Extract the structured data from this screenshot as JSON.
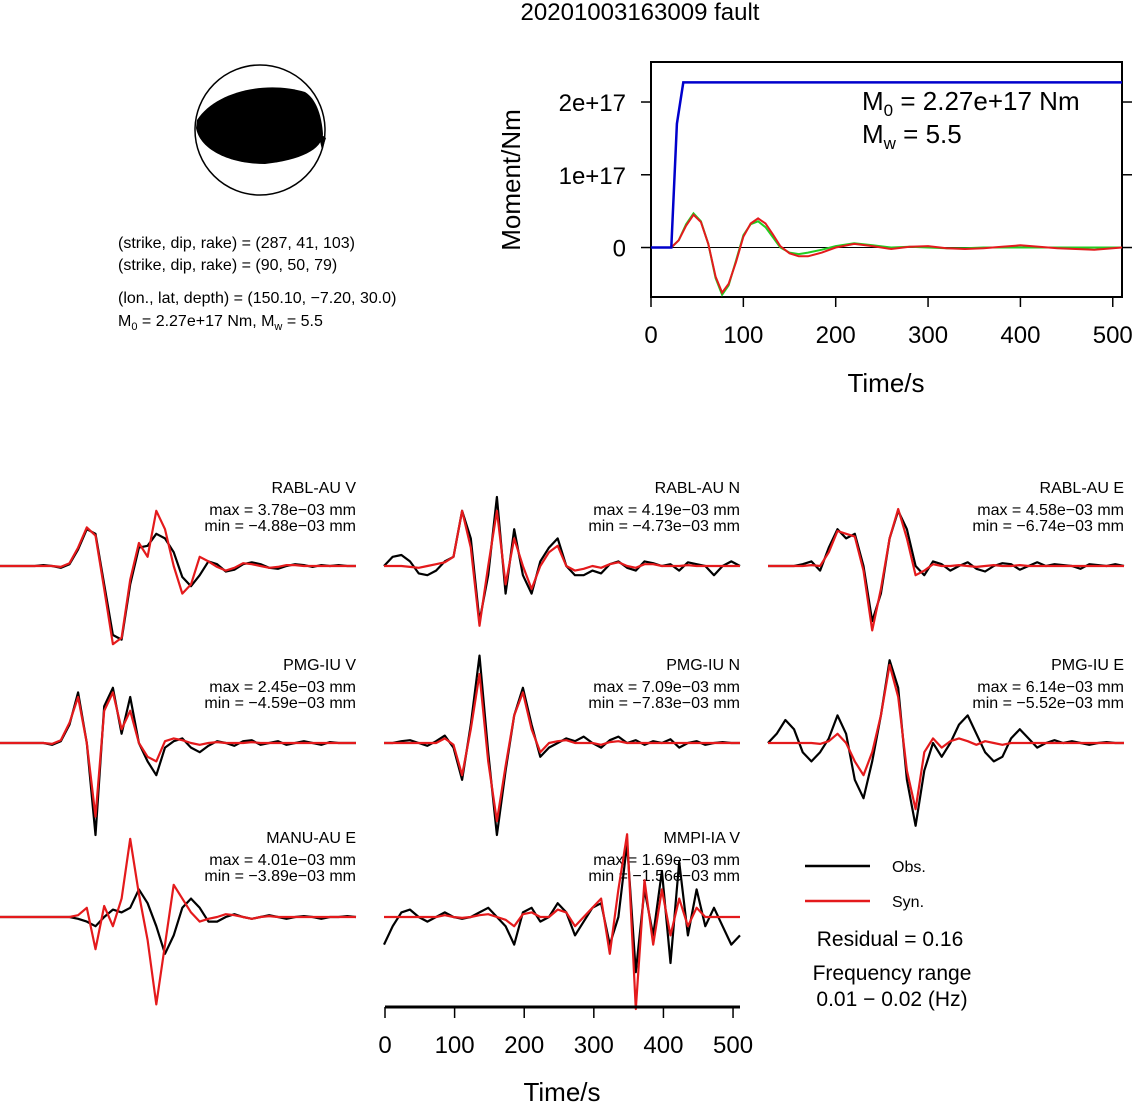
{
  "title": "20201003163009 fault",
  "colors": {
    "obs": "#000000",
    "syn": "#e41a1c",
    "moment": "#0000cc",
    "stf_a": "#e41a1c",
    "stf_b": "#22cc22"
  },
  "mechanism": {
    "lines": [
      "(strike, dip, rake) = (287, 41, 103)",
      "(strike, dip, rake) = (90, 50, 79)",
      "(lon., lat, depth) = (150.10, −7.20, 30.0)"
    ],
    "m0_line": {
      "m_prefix": "M",
      "m_sub": "0",
      "m_rest": " = 2.27e+17 Nm, M",
      "w_sub": "w",
      "w_rest": " = 5.5"
    }
  },
  "chart_data": [
    {
      "type": "line",
      "ylabel": "Moment/Nm",
      "xlabel": "Time/s",
      "xlim": [
        0,
        510
      ],
      "ylim": [
        -6.8e+16,
        2.55e+17
      ],
      "xticks": [
        0,
        100,
        200,
        300,
        400,
        500
      ],
      "xtick_labels": [
        "0",
        "100",
        "200",
        "300",
        "400",
        "500"
      ],
      "yticks": [
        0,
        1e+17,
        2e+17
      ],
      "ytick_labels": [
        "0",
        "1e+17",
        "2e+17"
      ],
      "annotation": {
        "m": "M",
        "m_sub": "0",
        "m_text": " = 2.27e+17 Nm",
        "w": "M",
        "w_sub": "w",
        "w_text": " = 5.5"
      },
      "series": [
        {
          "role": "moment",
          "x": [
            0,
            22,
            28,
            35,
            40,
            510
          ],
          "y": [
            0,
            0,
            1.7e+17,
            2.27e+17,
            2.27e+17,
            2.27e+17
          ]
        },
        {
          "role": "stf_a",
          "x": [
            0,
            22,
            30,
            38,
            46,
            54,
            62,
            70,
            77,
            84,
            92,
            100,
            108,
            116,
            124,
            132,
            140,
            150,
            160,
            170,
            185,
            200,
            220,
            240,
            260,
            280,
            300,
            320,
            340,
            360,
            380,
            400,
            420,
            440,
            460,
            480,
            500,
            510
          ],
          "y": [
            0,
            0,
            1e+16,
            3e+16,
            4.5e+16,
            3.5e+16,
            5000000000000000.0,
            -4e+16,
            -6.2e+16,
            -5e+16,
            -2e+16,
            1.5e+16,
            3.3e+16,
            4e+16,
            3.3e+16,
            1.8e+16,
            2000000000000000.0,
            -8000000000000000.0,
            -1.2e+16,
            -1.2e+16,
            -7000000000000000.0,
            0.0,
            5000000000000000.0,
            2000000000000000.0,
            -2000000000000000.0,
            1000000000000000.0,
            2000000000000000.0,
            -1000000000000000.0,
            -2000000000000000.0,
            -1000000000000000.0,
            1000000000000000.0,
            3000000000000000.0,
            1000000000000000.0,
            -1000000000000000.0,
            -2000000000000000.0,
            -3000000000000000.0,
            -1000000000000000.0,
            0
          ]
        },
        {
          "role": "stf_b",
          "x": [
            0,
            22,
            30,
            38,
            46,
            54,
            62,
            70,
            77,
            84,
            92,
            100,
            108,
            116,
            124,
            132,
            140,
            150,
            160,
            170,
            185,
            200,
            220,
            240,
            260,
            280,
            300,
            320,
            340,
            360,
            380,
            400,
            420,
            440,
            460,
            480,
            500,
            510
          ],
          "y": [
            0,
            0,
            1e+16,
            3.2e+16,
            4.7e+16,
            3.6e+16,
            5000000000000000.0,
            -4.2e+16,
            -6.5e+16,
            -5.2e+16,
            -1.8e+16,
            1.7e+16,
            3.2e+16,
            3.6e+16,
            2.8e+16,
            1.4e+16,
            0.0,
            -7000000000000000.0,
            -9000000000000000.0,
            -7000000000000000.0,
            -3000000000000000.0,
            2000000000000000.0,
            6000000000000000.0,
            3000000000000000.0,
            0.0,
            1000000000000000.0,
            0.0,
            -1000000000000000.0,
            -1000000000000000.0,
            0.0,
            0.0,
            0.0,
            0.0,
            0.0,
            0.0,
            0.0,
            0.0,
            0
          ]
        }
      ]
    },
    {
      "type": "line",
      "xlabel": "Time/s",
      "xlim": [
        0,
        510
      ],
      "xticks": [
        0,
        100,
        200,
        300,
        400,
        500
      ],
      "xtick_labels": [
        "0",
        "100",
        "200",
        "300",
        "400",
        "500"
      ],
      "series_names": [
        "Obs.",
        "Syn."
      ],
      "residual": "Residual = 0.16",
      "freq_label": "Frequency range",
      "freq_value": "0.01 − 0.02 (Hz)",
      "panels": [
        {
          "station": "RABL-AU V",
          "max": "max = 3.78e−03 mm",
          "min": "min = −4.88e−03 mm",
          "obs": [
            0,
            0,
            0,
            0,
            0,
            0.01,
            0,
            -0.02,
            0.02,
            0.18,
            0.4,
            0.35,
            -0.2,
            -0.75,
            -0.8,
            -0.2,
            0.2,
            0.22,
            0.35,
            0.3,
            0.15,
            -0.12,
            -0.22,
            -0.1,
            0.05,
            0.02,
            -0.06,
            -0.04,
            0.02,
            0.04,
            0.02,
            -0.02,
            -0.03,
            0,
            0.02,
            0.01,
            -0.01,
            0.01,
            0,
            0.01,
            0,
            0
          ],
          "syn": [
            0,
            0,
            0,
            0,
            0,
            0,
            0,
            -0.01,
            0.03,
            0.2,
            0.42,
            0.33,
            -0.25,
            -0.85,
            -0.78,
            -0.15,
            0.25,
            0.1,
            0.6,
            0.4,
            0.0,
            -0.3,
            -0.2,
            0.1,
            0.05,
            -0.01,
            -0.05,
            -0.02,
            0.03,
            0.02,
            0,
            -0.02,
            -0.01,
            0.01,
            0.01,
            0,
            0,
            0,
            0,
            0,
            0,
            0
          ]
        },
        {
          "station": "RABL-AU N",
          "max": "max = 4.19e−03 mm",
          "min": "min = −4.73e−03 mm",
          "obs": [
            0,
            0.1,
            0.12,
            0.05,
            -0.08,
            -0.1,
            -0.05,
            0.05,
            0.1,
            0.6,
            0.3,
            -0.6,
            -0.1,
            0.75,
            -0.3,
            0.4,
            -0.1,
            -0.3,
            0.05,
            0.2,
            0.3,
            0.0,
            -0.1,
            -0.1,
            -0.05,
            -0.08,
            0.02,
            0.05,
            -0.02,
            -0.05,
            0.05,
            0.03,
            0.0,
            0.02,
            -0.05,
            0.04,
            0.02,
            0.0,
            -0.1,
            0.0,
            0.05,
            0
          ],
          "syn": [
            0,
            0,
            0,
            -0.01,
            -0.02,
            0,
            0.02,
            0.04,
            0.1,
            0.6,
            0.2,
            -0.65,
            0.0,
            0.6,
            -0.2,
            0.3,
            0.0,
            -0.25,
            0.0,
            0.15,
            0.22,
            0.0,
            -0.05,
            -0.03,
            0,
            -0.02,
            0.02,
            0.04,
            0,
            -0.02,
            0.02,
            0.02,
            0,
            0,
            0,
            0.01,
            0,
            0,
            0,
            0,
            0,
            0
          ]
        },
        {
          "station": "RABL-AU E",
          "max": "max = 4.58e−03 mm",
          "min": "min = −6.74e−03 mm",
          "obs": [
            0,
            0,
            0,
            0,
            0.02,
            0.05,
            -0.05,
            0.2,
            0.4,
            0.3,
            0.35,
            0.0,
            -0.6,
            -0.3,
            0.3,
            0.6,
            0.4,
            0.0,
            -0.1,
            0.05,
            0.02,
            -0.05,
            0.0,
            0.04,
            -0.03,
            -0.06,
            0.0,
            0.03,
            0.02,
            -0.04,
            0.0,
            0.04,
            0.0,
            0.02,
            0.01,
            0.0,
            -0.03,
            0.02,
            0.01,
            0.0,
            0.02,
            0
          ],
          "syn": [
            0,
            0,
            0,
            0,
            0,
            0.01,
            0.0,
            0.15,
            0.38,
            0.35,
            0.32,
            -0.05,
            -0.7,
            -0.25,
            0.3,
            0.62,
            0.3,
            -0.1,
            -0.05,
            0.02,
            0.0,
            0.0,
            0.01,
            0.0,
            -0.01,
            0.0,
            0.01,
            0.0,
            0.0,
            0.01,
            0.0,
            0.0,
            0.0,
            0.0,
            0.0,
            0.0,
            0.0,
            0.0,
            0.0,
            0.0,
            0.0,
            0
          ]
        },
        {
          "station": "PMG-IU V",
          "max": "max = 2.45e−03 mm",
          "min": "min = −4.59e−03 mm",
          "obs": [
            0,
            0,
            0,
            0,
            0,
            0,
            -0.02,
            0.02,
            0.2,
            0.55,
            0.0,
            -1.0,
            0.4,
            0.6,
            0.1,
            0.5,
            0.0,
            -0.2,
            -0.35,
            -0.05,
            0.02,
            0.05,
            -0.05,
            -0.1,
            -0.03,
            0.02,
            0.0,
            -0.03,
            0.02,
            0.03,
            -0.02,
            0.0,
            0.02,
            -0.02,
            0.0,
            0.02,
            0.0,
            -0.02,
            0.01,
            0.0,
            0.0,
            0
          ],
          "syn": [
            0,
            0,
            0,
            0,
            0,
            0,
            -0.01,
            0.03,
            0.22,
            0.5,
            0.0,
            -0.8,
            0.35,
            0.55,
            0.15,
            0.35,
            0.0,
            -0.15,
            -0.2,
            0.02,
            0.05,
            0.03,
            0.0,
            -0.02,
            0.0,
            0.01,
            0.0,
            0.0,
            0.0,
            0.01,
            0.0,
            0.0,
            0.0,
            0.0,
            0.0,
            0.0,
            0.0,
            0.0,
            0.0,
            0.0,
            0.0,
            0
          ]
        },
        {
          "station": "PMG-IU N",
          "max": "max = 7.09e−03 mm",
          "min": "min = −7.83e−03 mm",
          "obs": [
            0,
            0,
            0.02,
            0.03,
            0,
            -0.03,
            0.02,
            0.08,
            -0.05,
            -0.4,
            0.2,
            0.95,
            -0.1,
            -1.0,
            -0.3,
            0.3,
            0.6,
            0.2,
            -0.15,
            -0.05,
            0.0,
            0.05,
            0.02,
            0.07,
            0.0,
            -0.05,
            0.03,
            0.07,
            0.0,
            0.03,
            -0.02,
            0.02,
            0.0,
            0.04,
            -0.05,
            0.0,
            0.02,
            -0.02,
            0.0,
            0.01,
            0.0,
            0
          ],
          "syn": [
            0,
            0,
            0,
            0,
            0,
            0,
            0.0,
            0.05,
            -0.02,
            -0.35,
            0.15,
            0.75,
            -0.2,
            -0.85,
            -0.25,
            0.3,
            0.55,
            0.15,
            -0.1,
            0.0,
            0.02,
            0.03,
            0.0,
            0.0,
            0.0,
            -0.02,
            0.01,
            0.02,
            0.0,
            0.0,
            0.0,
            0.0,
            0.0,
            0.0,
            0.0,
            0.0,
            0.0,
            0.0,
            0.0,
            0.0,
            0.0,
            0
          ]
        },
        {
          "station": "PMG-IU E",
          "max": "max = 6.14e−03 mm",
          "min": "min = −5.52e−03 mm",
          "obs": [
            0,
            0.1,
            0.25,
            0.15,
            -0.1,
            -0.2,
            -0.1,
            0.05,
            0.3,
            0.1,
            -0.4,
            -0.6,
            -0.2,
            0.3,
            0.9,
            0.6,
            -0.4,
            -0.9,
            -0.3,
            0.0,
            -0.15,
            0.0,
            0.2,
            0.3,
            0.1,
            -0.1,
            -0.2,
            -0.15,
            0.05,
            0.15,
            0.05,
            -0.05,
            0.0,
            0.03,
            0.0,
            0.02,
            0.0,
            -0.02,
            0.0,
            0.01,
            0.0,
            0
          ],
          "syn": [
            0,
            0,
            0,
            0,
            0,
            0,
            -0.01,
            0.02,
            0.1,
            0.0,
            -0.2,
            -0.35,
            -0.1,
            0.3,
            0.85,
            0.5,
            -0.3,
            -0.72,
            -0.1,
            0.05,
            -0.05,
            0.02,
            0.05,
            0.02,
            -0.02,
            0.02,
            0.0,
            -0.02,
            0.0,
            0.0,
            0.0,
            0.0,
            0.0,
            0.0,
            0.0,
            0.0,
            0.0,
            0.0,
            0.0,
            0.0,
            0.0,
            0
          ]
        },
        {
          "station": "MANU-AU E",
          "max": "max = 4.01e−03 mm",
          "min": "min = −3.89e−03 mm",
          "obs": [
            0,
            0,
            0,
            0,
            0,
            0,
            0,
            0,
            0,
            -0.02,
            -0.05,
            -0.1,
            0.0,
            0.08,
            0.05,
            0.1,
            0.3,
            0.15,
            -0.1,
            -0.4,
            -0.2,
            0.1,
            0.2,
            0.1,
            -0.05,
            -0.05,
            0.0,
            0.03,
            0.0,
            -0.02,
            0.0,
            0.02,
            0.0,
            -0.02,
            0.0,
            0.01,
            0.0,
            -0.02,
            0.0,
            0.0,
            0.01,
            0
          ],
          "syn": [
            0,
            0,
            0,
            0,
            0,
            0,
            0,
            0,
            0,
            0.02,
            0.1,
            -0.35,
            0.12,
            -0.1,
            0.2,
            0.85,
            0.25,
            -0.25,
            -0.95,
            -0.3,
            0.35,
            0.2,
            0.05,
            -0.05,
            -0.02,
            0.0,
            0.03,
            0.02,
            0.0,
            -0.02,
            0.0,
            0.01,
            0.0,
            0.0,
            0.0,
            0.0,
            0.0,
            0.0,
            0.0,
            0.0,
            0.0,
            0
          ]
        },
        {
          "station": "MMPI-IA V",
          "max": "max = 1.69e−03 mm",
          "min": "min = −1.56e−03 mm",
          "obs": [
            -0.3,
            -0.1,
            0.05,
            0.08,
            0.0,
            -0.05,
            0.0,
            0.05,
            0.0,
            -0.02,
            0.0,
            0.05,
            0.1,
            0.0,
            -0.1,
            -0.3,
            0.05,
            0.1,
            -0.05,
            0.0,
            0.15,
            0.05,
            -0.2,
            -0.05,
            0.1,
            0.15,
            -0.3,
            0.0,
            0.8,
            -0.6,
            0.3,
            -0.2,
            0.5,
            -0.5,
            0.6,
            -0.2,
            0.3,
            -0.1,
            0.1,
            -0.1,
            -0.3,
            -0.2
          ],
          "syn": [
            0,
            0,
            0,
            0.0,
            0.0,
            0.0,
            0.0,
            0.02,
            0.0,
            -0.01,
            0.0,
            0.02,
            0.03,
            0.0,
            -0.03,
            -0.1,
            0.03,
            0.05,
            0.0,
            0.0,
            0.08,
            0.05,
            -0.1,
            0.0,
            0.1,
            0.2,
            -0.4,
            0.3,
            0.9,
            -1.0,
            0.4,
            -0.3,
            0.3,
            -0.2,
            0.2,
            -0.1,
            0.1,
            0.0,
            0.0,
            0.0,
            0.0,
            0
          ]
        }
      ]
    }
  ]
}
